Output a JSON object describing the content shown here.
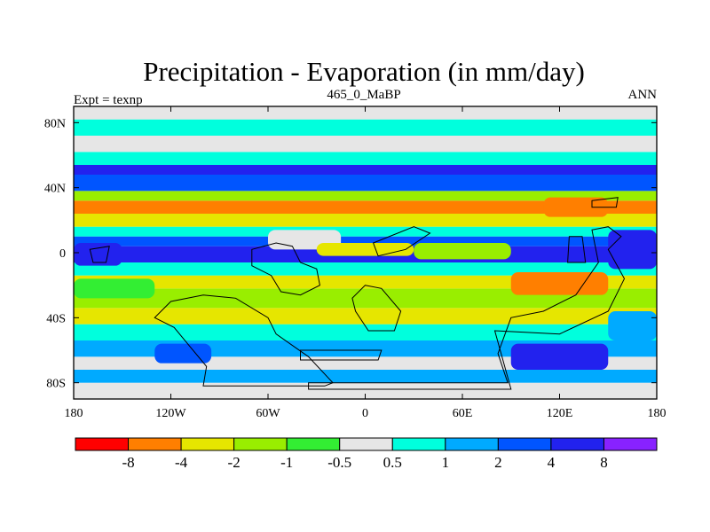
{
  "chart_data": {
    "type": "heatmap",
    "title": "Precipitation - Evaporation (in mm/day)",
    "left_label": "Expt = texnp",
    "center_label": "465_0_MaBP",
    "right_label": "ANN",
    "x_ticks": [
      "180",
      "120W",
      "60W",
      "0",
      "60E",
      "120E",
      "180"
    ],
    "x_tick_values": [
      -180,
      -120,
      -60,
      0,
      60,
      120,
      180
    ],
    "y_ticks": [
      "80N",
      "40N",
      "0",
      "40S",
      "80S"
    ],
    "y_tick_values": [
      80,
      40,
      0,
      -40,
      -80
    ],
    "xlim": [
      -180,
      180
    ],
    "ylim": [
      -90,
      90
    ],
    "colorbar_labels": [
      "-8",
      "-4",
      "-2",
      "-1",
      "-0.5",
      "0.5",
      "1",
      "2",
      "4",
      "8"
    ],
    "colorbar_colors": [
      "#ff0000",
      "#ff7f00",
      "#e6e600",
      "#99ee00",
      "#33ee33",
      "#e6e6e6",
      "#00ffdd",
      "#00aaff",
      "#0055ff",
      "#2222ee",
      "#8822ff"
    ],
    "bands": [
      {
        "lat": [
          -90,
          -80
        ],
        "class": 5
      },
      {
        "lat": [
          -80,
          -72
        ],
        "class": 7
      },
      {
        "lat": [
          -72,
          -64
        ],
        "class": 5
      },
      {
        "lat": [
          -64,
          -54
        ],
        "class": 7
      },
      {
        "lat": [
          -54,
          -44
        ],
        "class": 6
      },
      {
        "lat": [
          -44,
          -34
        ],
        "class": 2
      },
      {
        "lat": [
          -34,
          -22
        ],
        "class": 3
      },
      {
        "lat": [
          -22,
          -14
        ],
        "class": 2
      },
      {
        "lat": [
          -14,
          -6
        ],
        "class": 6
      },
      {
        "lat": [
          -6,
          4
        ],
        "class": 9
      },
      {
        "lat": [
          4,
          10
        ],
        "class": 8
      },
      {
        "lat": [
          10,
          16
        ],
        "class": 6
      },
      {
        "lat": [
          16,
          24
        ],
        "class": 2
      },
      {
        "lat": [
          24,
          32
        ],
        "class": 1
      },
      {
        "lat": [
          32,
          38
        ],
        "class": 3
      },
      {
        "lat": [
          38,
          48
        ],
        "class": 8
      },
      {
        "lat": [
          48,
          54
        ],
        "class": 9
      },
      {
        "lat": [
          54,
          62
        ],
        "class": 6
      },
      {
        "lat": [
          62,
          72
        ],
        "class": 5
      },
      {
        "lat": [
          72,
          82
        ],
        "class": 6
      },
      {
        "lat": [
          82,
          90
        ],
        "class": 5
      }
    ],
    "patches": [
      {
        "lon": [
          -180,
          -130
        ],
        "lat": [
          -28,
          -16
        ],
        "class": 4
      },
      {
        "lon": [
          -60,
          -15
        ],
        "lat": [
          2,
          14
        ],
        "class": 5
      },
      {
        "lon": [
          -30,
          30
        ],
        "lat": [
          -2,
          6
        ],
        "class": 2
      },
      {
        "lon": [
          30,
          90
        ],
        "lat": [
          -4,
          6
        ],
        "class": 3
      },
      {
        "lon": [
          90,
          150
        ],
        "lat": [
          -26,
          -12
        ],
        "class": 1
      },
      {
        "lon": [
          110,
          150
        ],
        "lat": [
          22,
          34
        ],
        "class": 1
      },
      {
        "lon": [
          150,
          180
        ],
        "lat": [
          -10,
          14
        ],
        "class": 9
      },
      {
        "lon": [
          -180,
          -150
        ],
        "lat": [
          -8,
          6
        ],
        "class": 9
      },
      {
        "lon": [
          -130,
          -95
        ],
        "lat": [
          -68,
          -56
        ],
        "class": 8
      },
      {
        "lon": [
          90,
          150
        ],
        "lat": [
          -72,
          -56
        ],
        "class": 9
      },
      {
        "lon": [
          150,
          180
        ],
        "lat": [
          -54,
          -36
        ],
        "class": 7
      }
    ],
    "land_outlines": [
      [
        [
          -130,
          -40
        ],
        [
          -118,
          -46
        ],
        [
          -108,
          -58
        ],
        [
          -98,
          -70
        ],
        [
          -100,
          -82
        ],
        [
          -25,
          -82
        ],
        [
          -20,
          -80
        ],
        [
          -35,
          -64
        ],
        [
          -55,
          -50
        ],
        [
          -60,
          -40
        ],
        [
          -80,
          -28
        ],
        [
          -100,
          -26
        ],
        [
          -120,
          -30
        ]
      ],
      [
        [
          -70,
          2
        ],
        [
          -55,
          6
        ],
        [
          -45,
          4
        ],
        [
          -40,
          -6
        ],
        [
          -30,
          -10
        ],
        [
          -28,
          -20
        ],
        [
          -40,
          -26
        ],
        [
          -52,
          -24
        ],
        [
          -58,
          -14
        ],
        [
          -70,
          -8
        ]
      ],
      [
        [
          0,
          -20
        ],
        [
          10,
          -22
        ],
        [
          22,
          -36
        ],
        [
          18,
          -48
        ],
        [
          2,
          -48
        ],
        [
          -6,
          -36
        ],
        [
          -8,
          -28
        ]
      ],
      [
        [
          -40,
          -60
        ],
        [
          10,
          -60
        ],
        [
          8,
          -66
        ],
        [
          -40,
          -66
        ]
      ],
      [
        [
          80,
          -48
        ],
        [
          120,
          -50
        ],
        [
          150,
          -36
        ],
        [
          160,
          -16
        ],
        [
          150,
          2
        ],
        [
          158,
          10
        ],
        [
          150,
          16
        ],
        [
          140,
          14
        ],
        [
          144,
          -6
        ],
        [
          130,
          -26
        ],
        [
          110,
          -36
        ],
        [
          90,
          -40
        ],
        [
          82,
          -62
        ],
        [
          88,
          -80
        ],
        [
          -35,
          -80
        ],
        [
          -35,
          -84
        ],
        [
          90,
          -84
        ]
      ],
      [
        [
          5,
          6
        ],
        [
          30,
          16
        ],
        [
          40,
          12
        ],
        [
          25,
          2
        ],
        [
          8,
          -2
        ]
      ],
      [
        [
          125,
          -6
        ],
        [
          136,
          -6
        ],
        [
          134,
          10
        ],
        [
          126,
          10
        ]
      ],
      [
        [
          140,
          32
        ],
        [
          156,
          34
        ],
        [
          155,
          28
        ],
        [
          140,
          28
        ]
      ],
      [
        [
          -170,
          2
        ],
        [
          -158,
          4
        ],
        [
          -160,
          -6
        ],
        [
          -168,
          -6
        ]
      ]
    ],
    "grid": false,
    "legend": "bottom"
  }
}
